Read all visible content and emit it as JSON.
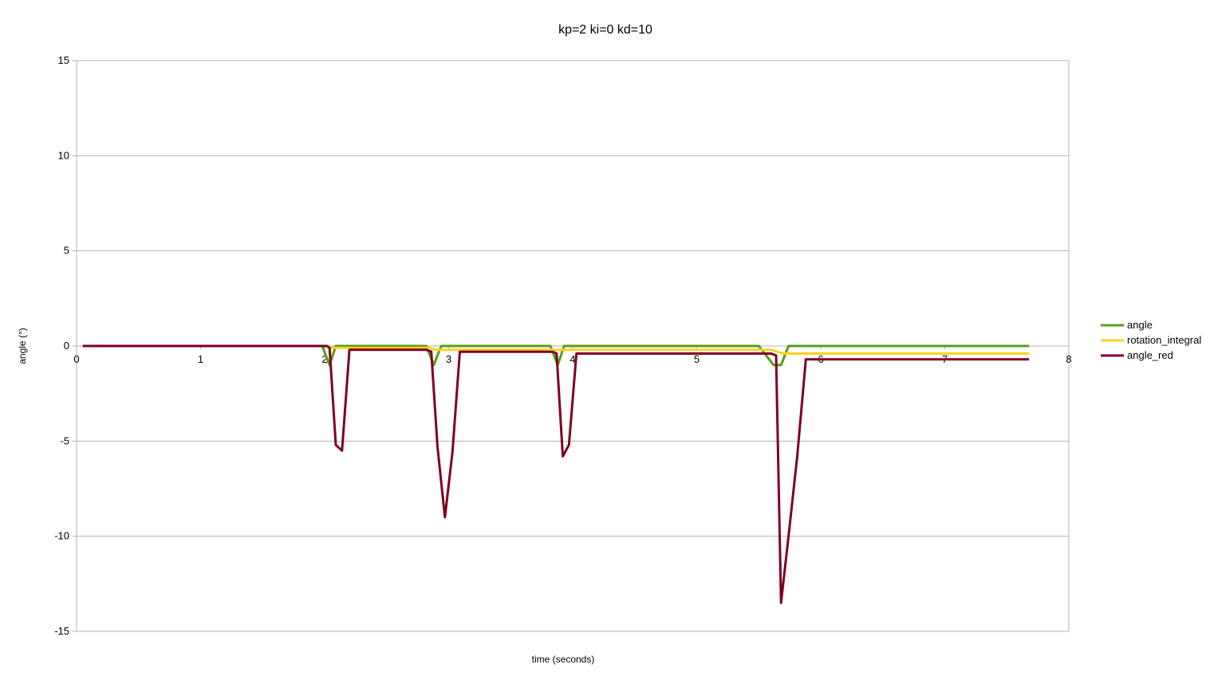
{
  "chart_data": {
    "type": "line",
    "title": "kp=2 ki=0 kd=10",
    "xlabel": "time (seconds)",
    "ylabel": "angle (°)",
    "xlim": [
      0,
      8
    ],
    "ylim": [
      -15,
      15
    ],
    "x_ticks": [
      0,
      1,
      2,
      3,
      4,
      5,
      6,
      7,
      8
    ],
    "y_ticks": [
      15,
      10,
      5,
      0,
      -5,
      -10,
      -15
    ],
    "grid": true,
    "legend_position": "right",
    "series": [
      {
        "name": "angle",
        "color": "#579d1c",
        "points": [
          [
            0.05,
            0
          ],
          [
            1.98,
            0
          ],
          [
            2.04,
            -1
          ],
          [
            2.09,
            0
          ],
          [
            2.82,
            0
          ],
          [
            2.88,
            -1
          ],
          [
            2.94,
            0
          ],
          [
            3.82,
            0
          ],
          [
            3.88,
            -1
          ],
          [
            3.93,
            0
          ],
          [
            5.5,
            0
          ],
          [
            5.62,
            -1
          ],
          [
            5.68,
            -1
          ],
          [
            5.74,
            0
          ],
          [
            7.68,
            0
          ]
        ]
      },
      {
        "name": "rotation_integral",
        "color": "#ffd320",
        "points": [
          [
            0.05,
            0
          ],
          [
            2.0,
            0
          ],
          [
            2.05,
            -0.1
          ],
          [
            2.85,
            -0.1
          ],
          [
            2.9,
            -0.2
          ],
          [
            3.85,
            -0.2
          ],
          [
            3.9,
            -0.2
          ],
          [
            5.6,
            -0.2
          ],
          [
            5.7,
            -0.4
          ],
          [
            7.68,
            -0.4
          ]
        ]
      },
      {
        "name": "angle_red",
        "color": "#7e0021",
        "points": [
          [
            0.05,
            0
          ],
          [
            2.02,
            0
          ],
          [
            2.04,
            -0.1
          ],
          [
            2.09,
            -5.2
          ],
          [
            2.14,
            -5.5
          ],
          [
            2.2,
            -0.2
          ],
          [
            2.82,
            -0.2
          ],
          [
            2.86,
            -0.3
          ],
          [
            2.91,
            -5.3
          ],
          [
            2.97,
            -9.0
          ],
          [
            3.03,
            -5.6
          ],
          [
            3.09,
            -0.3
          ],
          [
            3.84,
            -0.3
          ],
          [
            3.87,
            -0.4
          ],
          [
            3.92,
            -5.8
          ],
          [
            3.97,
            -5.2
          ],
          [
            4.03,
            -0.4
          ],
          [
            5.6,
            -0.4
          ],
          [
            5.64,
            -0.5
          ],
          [
            5.68,
            -13.5
          ],
          [
            5.74,
            -10.0
          ],
          [
            5.81,
            -5.8
          ],
          [
            5.88,
            -0.7
          ],
          [
            7.68,
            -0.7
          ]
        ]
      }
    ]
  }
}
